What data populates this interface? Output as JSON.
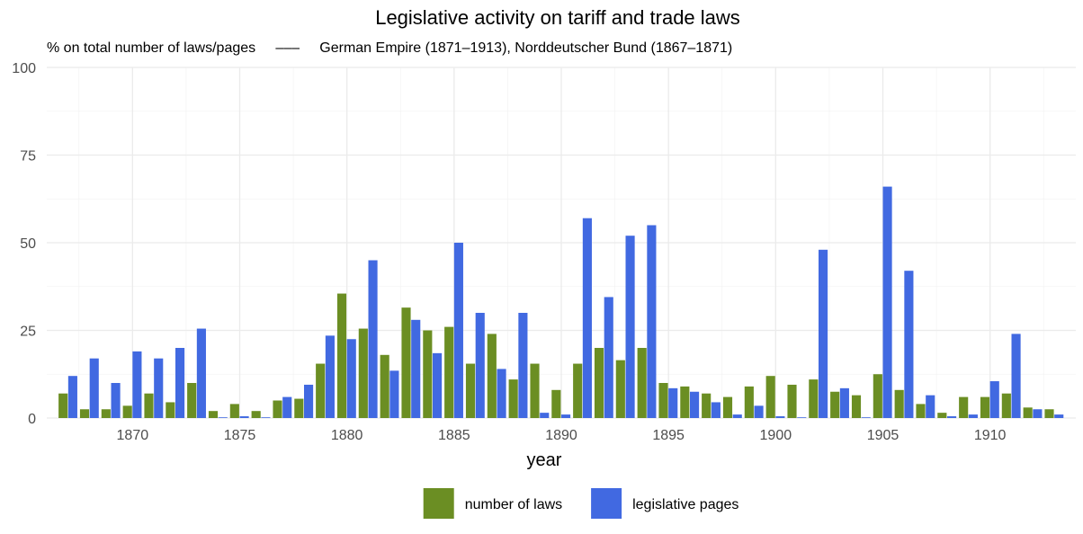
{
  "chart_data": {
    "type": "bar",
    "title": "Legislative activity on tariff and trade laws",
    "subtitle": "% on total number of laws/pages     –––     German Empire (1871–1913), Norddeutscher Bund (1867–1871)",
    "xlabel": "year",
    "ylabel": "",
    "ylim": [
      0,
      100
    ],
    "xlim": [
      1866,
      1914
    ],
    "y_ticks": [
      0,
      25,
      50,
      75,
      100
    ],
    "x_ticks": [
      1870,
      1875,
      1880,
      1885,
      1890,
      1895,
      1900,
      1905,
      1910
    ],
    "grid": true,
    "legend_position": "bottom",
    "x": [
      1867,
      1868,
      1869,
      1870,
      1871,
      1872,
      1873,
      1874,
      1875,
      1876,
      1877,
      1878,
      1879,
      1880,
      1881,
      1882,
      1883,
      1884,
      1885,
      1886,
      1887,
      1888,
      1889,
      1890,
      1891,
      1892,
      1893,
      1894,
      1895,
      1896,
      1897,
      1898,
      1899,
      1900,
      1901,
      1902,
      1903,
      1904,
      1905,
      1906,
      1907,
      1908,
      1909,
      1910,
      1911,
      1912,
      1913
    ],
    "series": [
      {
        "name": "number of laws",
        "color": "#6b8e23",
        "values": [
          7,
          2.5,
          2.5,
          3.5,
          7,
          4.5,
          10,
          2,
          4,
          2,
          5,
          5.5,
          15.5,
          35.5,
          25.5,
          18,
          31.5,
          25,
          26,
          15.5,
          24,
          11,
          15.5,
          8,
          15.5,
          20,
          16.5,
          20,
          10,
          9,
          7,
          6,
          9,
          12,
          9.5,
          11,
          7.5,
          6.5,
          12.5,
          8,
          4,
          1.5,
          6,
          6,
          7,
          3,
          2.5
        ]
      },
      {
        "name": "legislative pages",
        "color": "#4169e1",
        "values": [
          12,
          17,
          10,
          19,
          17,
          20,
          25.5,
          0.2,
          0.5,
          0.2,
          6,
          9.5,
          23.5,
          22.5,
          45,
          13.5,
          28,
          18.5,
          50,
          30,
          14,
          30,
          1.5,
          1,
          57,
          34.5,
          52,
          55,
          8.5,
          7.5,
          4.5,
          1,
          3.5,
          0.5,
          0.2,
          48,
          8.5,
          0.2,
          66,
          42,
          6.5,
          0.5,
          1,
          10.5,
          24,
          2.5,
          1
        ]
      }
    ]
  }
}
